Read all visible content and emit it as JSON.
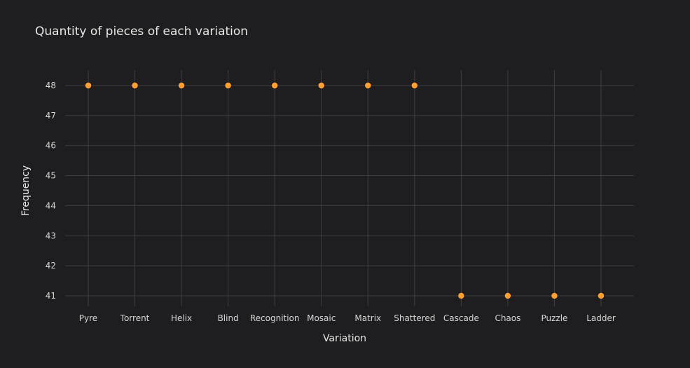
{
  "chart_data": {
    "type": "scatter",
    "title": "Quantity of pieces of each variation",
    "xlabel": "Variation",
    "ylabel": "Frequency",
    "categories": [
      "Pyre",
      "Torrent",
      "Helix",
      "Blind",
      "Recognition",
      "Mosaic",
      "Matrix",
      "Shattered",
      "Cascade",
      "Chaos",
      "Puzzle",
      "Ladder"
    ],
    "values": [
      48,
      48,
      48,
      48,
      48,
      48,
      48,
      48,
      41,
      41,
      41,
      41
    ],
    "yticks": [
      41,
      42,
      43,
      44,
      45,
      46,
      47,
      48
    ],
    "ylim": [
      40.5,
      48.5
    ],
    "grid": true,
    "legend": "none",
    "colors": {
      "background": "#1e1e20",
      "grid": "#3e3e42",
      "marker": "#ff9f33",
      "text": "#e6e6e6"
    }
  }
}
